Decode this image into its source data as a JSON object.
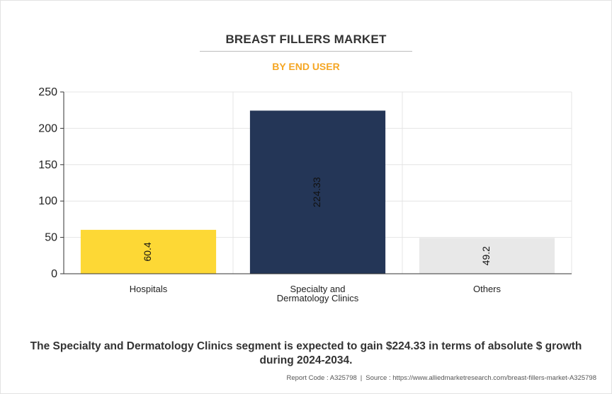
{
  "title": "BREAST FILLERS MARKET",
  "subtitle": "BY END USER",
  "chart_data": {
    "type": "bar",
    "categories": [
      "Hospitals",
      "Specialty and Dermatology Clinics",
      "Others"
    ],
    "category_lines": [
      [
        "Hospitals"
      ],
      [
        "Specialty and",
        "Dermatology Clinics"
      ],
      [
        "Others"
      ]
    ],
    "values": [
      60.4,
      224.33,
      49.2
    ],
    "value_labels": [
      "60.4",
      "224.33",
      "49.2"
    ],
    "colors": [
      "#fdd835",
      "#243657",
      "#e8e8e8"
    ],
    "ylim": [
      0,
      250
    ],
    "yticks": [
      0,
      50,
      100,
      150,
      200,
      250
    ],
    "grid": true,
    "xlabel": "",
    "ylabel": ""
  },
  "footer": {
    "note": "The Specialty and Dermatology Clinics segment is expected to gain $224.33 in terms of absolute $ growth during 2024-2034.",
    "report_code": "Report Code : A325798",
    "separator": "|",
    "source": "Source : https://www.alliedmarketresearch.com/breast-fillers-market-A325798"
  }
}
